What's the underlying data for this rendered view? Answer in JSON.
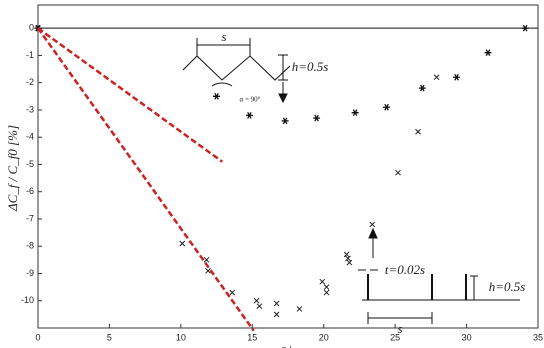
{
  "chart_data": {
    "type": "scatter",
    "y_label": "ΔC_f / C_f0 [%]",
    "x_label": "s+",
    "xlim": [
      0,
      35
    ],
    "ylim": [
      -11,
      0.85
    ],
    "xticks": [
      0,
      5,
      10,
      15,
      20,
      25,
      30,
      35
    ],
    "yticks": [
      0,
      -1,
      -2,
      -3,
      -4,
      -5,
      -6,
      -7,
      -8,
      -9,
      -10
    ],
    "zero_line": true,
    "series": [
      {
        "marker": "asterisk",
        "color": "#111111",
        "x": [
          0,
          12.5,
          14.8,
          17.3,
          19.5,
          22.2,
          24.4,
          26.9,
          29.3,
          31.5,
          34.1
        ],
        "values": [
          0,
          -2.5,
          -3.2,
          -3.4,
          -3.3,
          -3.1,
          -2.9,
          -2.2,
          -1.8,
          -0.9,
          0
        ]
      },
      {
        "marker": "x",
        "color": "#111111",
        "x": [
          0,
          10.1,
          11.8,
          11.9,
          13.6,
          15.3,
          15.5,
          16.7,
          16.7,
          18.3,
          19.9,
          20.2,
          20.2,
          21.6,
          21.7,
          21.8,
          23.4,
          25.2,
          26.6,
          27.9
        ],
        "values": [
          0,
          -7.9,
          -8.5,
          -8.9,
          -9.7,
          -10.0,
          -10.2,
          -10.1,
          -10.5,
          -10.3,
          -9.3,
          -9.5,
          -9.7,
          -8.3,
          -8.45,
          -8.6,
          -7.2,
          -5.3,
          -3.8,
          -1.8
        ]
      },
      {
        "marker": "dashed-line",
        "color": "#cc2222",
        "x": [
          0,
          12.9
        ],
        "values": [
          0,
          -4.9
        ]
      },
      {
        "marker": "dashed-line",
        "color": "#cc2222",
        "x": [
          0,
          15.1
        ],
        "values": [
          0,
          -11.1
        ]
      }
    ],
    "annotations": [
      "s",
      "α = 90°",
      "h=0.5s",
      "t=0.02s",
      "s",
      "h=0.5s"
    ]
  }
}
